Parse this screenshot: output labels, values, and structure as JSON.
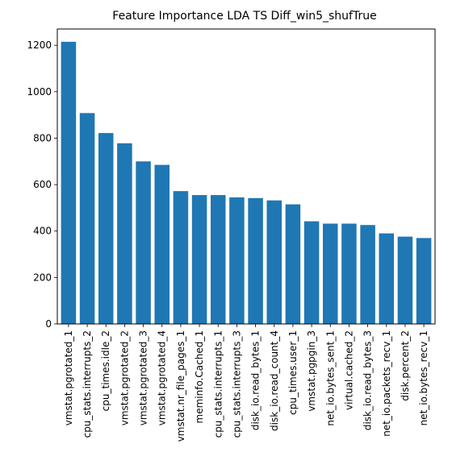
{
  "chart_data": {
    "type": "bar",
    "title": "Feature Importance LDA TS Diff_win5_shufTrue",
    "xlabel": "",
    "ylabel": "",
    "ylim": [
      0,
      1270
    ],
    "yticks": [
      0,
      200,
      400,
      600,
      800,
      1000,
      1200
    ],
    "grid": false,
    "bar_color": "#1f77b4",
    "categories": [
      "vmstat.pgrotated_1",
      "cpu_stats.interrupts_2",
      "cpu_times.idle_2",
      "vmstat.pgrotated_2",
      "vmstat.pgrotated_3",
      "vmstat.pgrotated_4",
      "vmstat.nr_file_pages_1",
      "meminfo.Cached_1",
      "cpu_stats.interrupts_1",
      "cpu_stats.interrupts_3",
      "disk_io.read_bytes_1",
      "disk_io.read_count_4",
      "cpu_times.user_1",
      "vmstat.pgpgin_3",
      "net_io.bytes_sent_1",
      "virtual.cached_2",
      "disk_io.read_bytes_3",
      "net_io.packets_recv_1",
      "disk.percent_2",
      "net_io.bytes_recv_1"
    ],
    "values": [
      1215,
      908,
      822,
      778,
      700,
      685,
      572,
      555,
      555,
      545,
      542,
      532,
      515,
      442,
      432,
      432,
      426,
      390,
      376,
      370
    ]
  }
}
